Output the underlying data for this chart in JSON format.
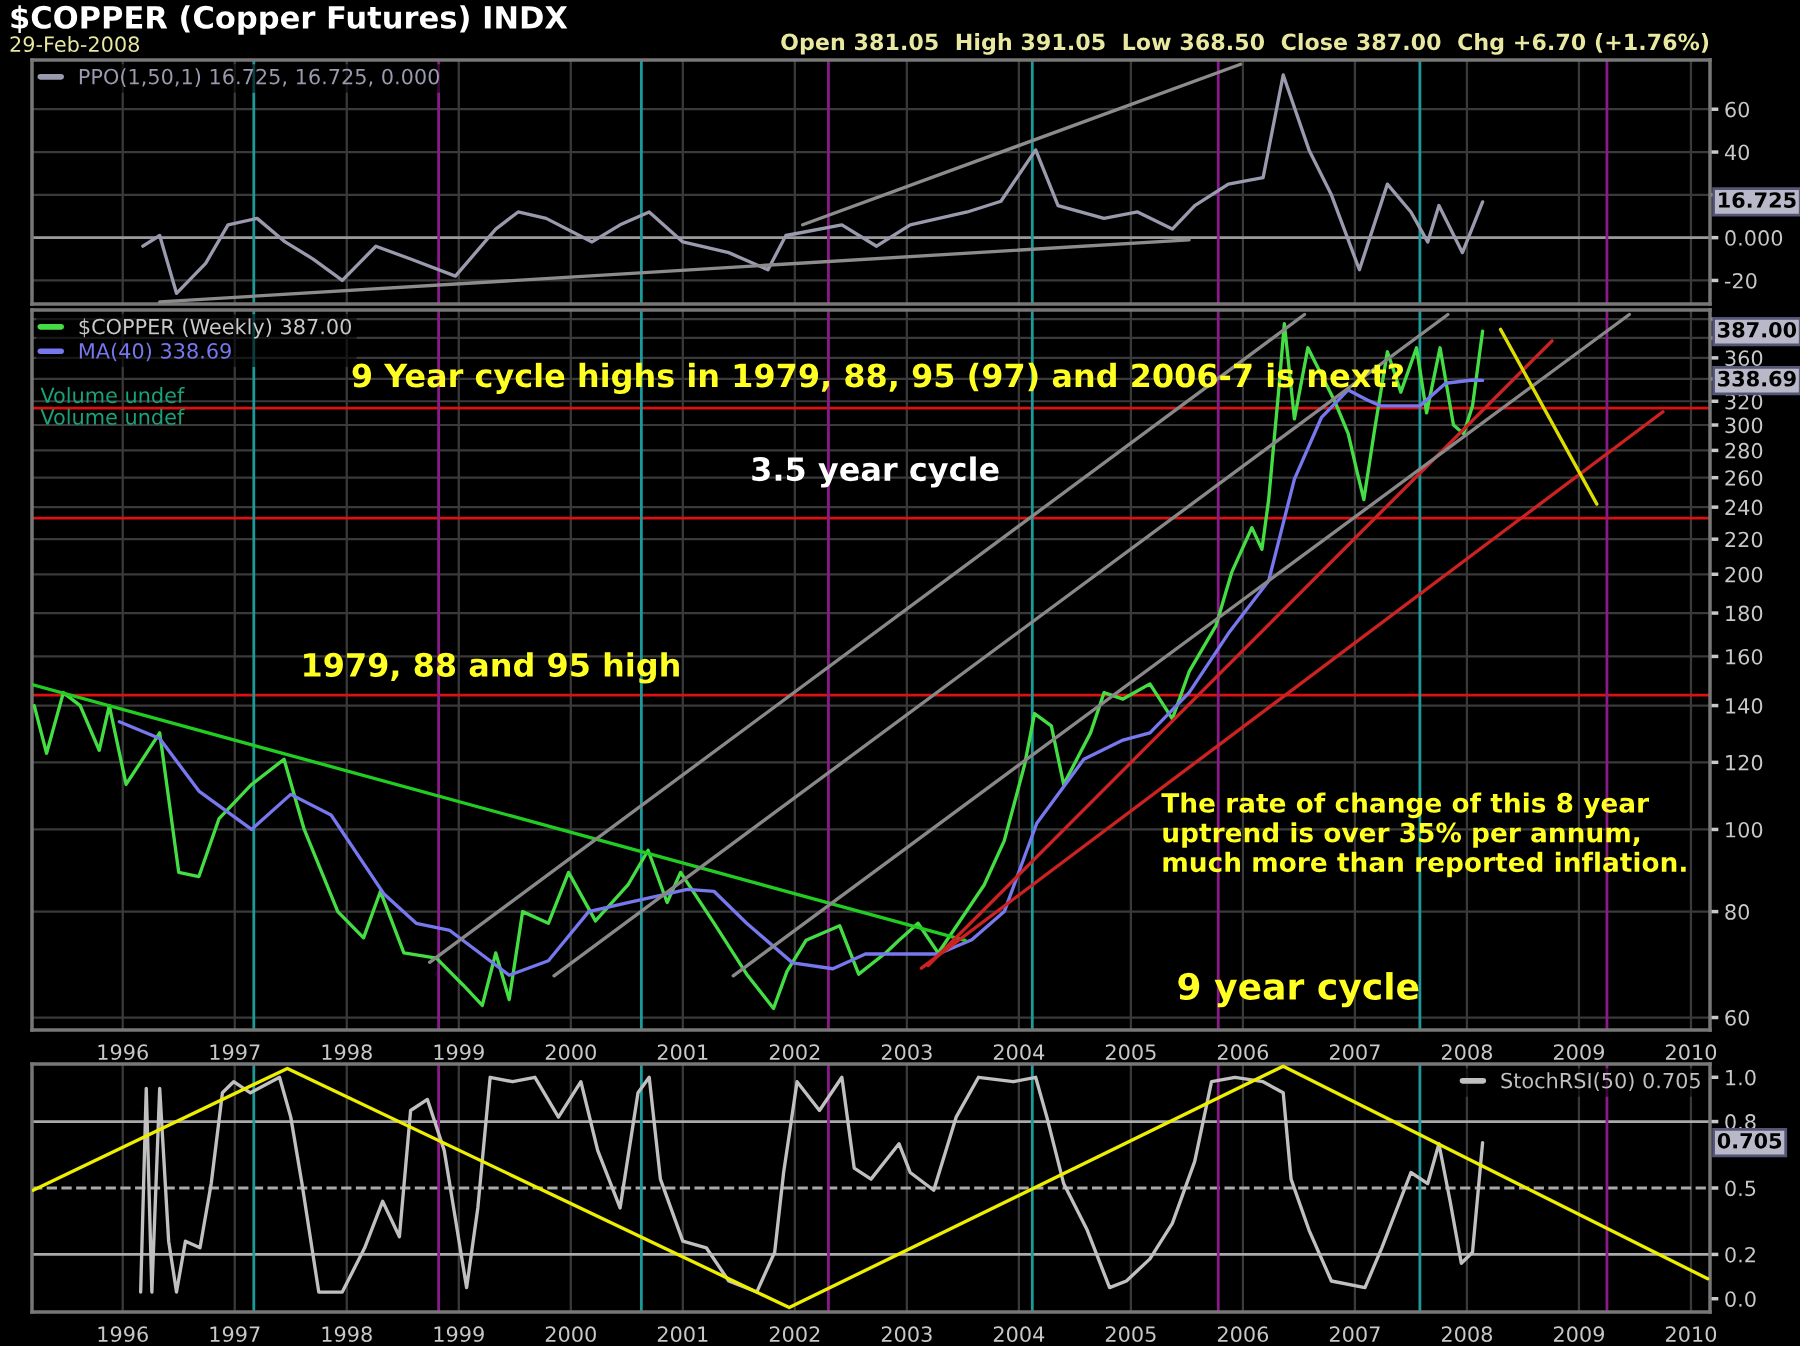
{
  "chart_data": [
    {
      "type": "line",
      "title": "$COPPER (Copper Futures) INDX",
      "subtitle": "29-Feb-2008",
      "annotations": [
        "Open 381.05  High 391.05  Low 368.50  Close 387.00  Chg +6.70 (+1.76%)",
        "16.725"
      ],
      "xlim": [
        1995.19,
        2010.17
      ],
      "xticks": [
        1996,
        1997,
        1998,
        1999,
        2000,
        2001,
        2002,
        2003,
        2004,
        2005,
        2006,
        2007,
        2008,
        2009,
        2010
      ],
      "ylim": [
        -31,
        83
      ],
      "yticks": [
        -20,
        {
          "value": 0,
          "label": "0.000"
        },
        {
          "value": 20,
          "label": null
        },
        40,
        60
      ],
      "tick_labels": "y",
      "grid": true,
      "legend": "top left",
      "ref_lines": [
        {
          "axis": "y",
          "value": 0,
          "color": "#9a9a9a"
        },
        {
          "axis": "x",
          "value": 1997.17,
          "color": "#1a9a9a"
        },
        {
          "axis": "x",
          "value": 2000.63,
          "color": "#1a9a9a"
        },
        {
          "axis": "x",
          "value": 2004.12,
          "color": "#1a9a9a"
        },
        {
          "axis": "x",
          "value": 2007.58,
          "color": "#1a9a9a"
        },
        {
          "axis": "x",
          "value": 1998.82,
          "color": "#8a1a8a"
        },
        {
          "axis": "x",
          "value": 2002.3,
          "color": "#8a1a8a"
        },
        {
          "axis": "x",
          "value": 2005.78,
          "color": "#8a1a8a"
        },
        {
          "axis": "x",
          "value": 2009.25,
          "color": "#8a1a8a"
        }
      ],
      "series": [
        {
          "name": "PPO(1,50,1) 16.725, 16.725, 0.000",
          "color": "#9a9aae",
          "x": [
            1996.18,
            1996.33,
            1996.48,
            1996.74,
            1996.94,
            1997.2,
            1997.45,
            1997.7,
            1997.96,
            1998.26,
            1998.57,
            1998.97,
            1999.33,
            1999.53,
            1999.78,
            2000.19,
            2000.44,
            2000.7,
            2001.0,
            2001.41,
            2001.76,
            2001.92,
            2002.42,
            2002.73,
            2003.03,
            2003.54,
            2003.84,
            2004.15,
            2004.35,
            2004.76,
            2005.06,
            2005.37,
            2005.57,
            2005.87,
            2006.18,
            2006.36,
            2006.59,
            2006.79,
            2007.04,
            2007.29,
            2007.5,
            2007.65,
            2007.75,
            2007.96,
            2008.14
          ],
          "values": [
            -4,
            1,
            -26,
            -12,
            6,
            9,
            -2,
            -10,
            -20,
            -4,
            -10,
            -18,
            4,
            12,
            9,
            -2,
            6,
            12,
            -2,
            -7,
            -15,
            1,
            6,
            -4,
            6,
            12,
            17,
            41,
            15,
            9,
            12,
            4,
            15,
            25,
            28,
            76,
            41,
            20,
            -15,
            25,
            12,
            -2,
            15,
            -7,
            16.725
          ]
        },
        {
          "color": "#8c8c8c",
          "x": [
            2002.07,
            2005.98
          ],
          "values": [
            6,
            81
          ]
        },
        {
          "color": "#8c8c8c",
          "x": [
            1996.33,
            2005.52
          ],
          "values": [
            -30,
            -1
          ]
        }
      ]
    },
    {
      "type": "line",
      "log": "y",
      "annotations": [
        "Volume undef",
        "Volume undef",
        "9 Year cycle highs in 1979, 88, 95 (97) and 2006-7 is next?",
        "3.5 year cycle",
        "1979, 88 and 95 high",
        "The rate of change of this 8 year\nuptrend is over 35% per annum,\nmuch more than reported inflation.",
        "9 year cycle",
        "387.00",
        "338.69"
      ],
      "xlim": [
        1995.19,
        2010.17
      ],
      "xticks": [
        1996,
        1997,
        1998,
        1999,
        2000,
        2001,
        2002,
        2003,
        2004,
        2005,
        2006,
        2007,
        2008,
        2009,
        2010
      ],
      "ylim": [
        58,
        410
      ],
      "yticks": [
        60,
        80,
        100,
        120,
        140,
        160,
        180,
        200,
        220,
        240,
        260,
        280,
        300,
        320,
        {
          "value": 340,
          "label": null
        },
        360,
        {
          "value": 380,
          "label": null
        },
        {
          "value": 400,
          "label": null
        }
      ],
      "grid": true,
      "legend": "top left",
      "ref_lines": [
        {
          "axis": "y",
          "value": 314,
          "color": "#dd1111"
        },
        {
          "axis": "y",
          "value": 233,
          "color": "#dd1111"
        },
        {
          "axis": "y",
          "value": 144,
          "color": "#dd1111"
        },
        {
          "axis": "x",
          "value": 1997.17,
          "color": "#1a9a9a"
        },
        {
          "axis": "x",
          "value": 2000.63,
          "color": "#1a9a9a"
        },
        {
          "axis": "x",
          "value": 2004.12,
          "color": "#1a9a9a"
        },
        {
          "axis": "x",
          "value": 2007.58,
          "color": "#1a9a9a"
        },
        {
          "axis": "x",
          "value": 1998.82,
          "color": "#8a1a8a"
        },
        {
          "axis": "x",
          "value": 2002.3,
          "color": "#8a1a8a"
        },
        {
          "axis": "x",
          "value": 2005.78,
          "color": "#8a1a8a"
        },
        {
          "axis": "x",
          "value": 2009.25,
          "color": "#8a1a8a"
        }
      ],
      "series": [
        {
          "name": "$COPPER (Weekly) 387.00",
          "color": "#44dd44",
          "x": [
            1995.21,
            1995.32,
            1995.47,
            1995.62,
            1995.79,
            1995.88,
            1996.03,
            1996.33,
            1996.5,
            1996.68,
            1996.86,
            1997.15,
            1997.44,
            1997.62,
            1997.92,
            1998.15,
            1998.3,
            1998.51,
            1998.8,
            1999.04,
            1999.21,
            1999.33,
            1999.45,
            1999.57,
            1999.8,
            1999.98,
            2000.22,
            2000.51,
            2000.69,
            2000.86,
            2000.98,
            2001.28,
            2001.57,
            2001.81,
            2001.93,
            2002.1,
            2002.4,
            2002.57,
            2002.81,
            2002.93,
            2003.1,
            2003.28,
            2003.46,
            2003.69,
            2003.87,
            2004.05,
            2004.14,
            2004.29,
            2004.4,
            2004.64,
            2004.76,
            2004.93,
            2005.17,
            2005.37,
            2005.52,
            2005.76,
            2005.9,
            2006.08,
            2006.17,
            2006.23,
            2006.32,
            2006.37,
            2006.46,
            2006.58,
            2006.82,
            2006.94,
            2007.02,
            2007.08,
            2007.17,
            2007.29,
            2007.41,
            2007.55,
            2007.64,
            2007.76,
            2007.88,
            2007.97,
            2008.05,
            2008.14
          ],
          "values": [
            140,
            123,
            145,
            140,
            124,
            140,
            113,
            130,
            89,
            88,
            103,
            113,
            121,
            100,
            80,
            74.5,
            84.5,
            71.5,
            70.5,
            65.5,
            62,
            71.5,
            63,
            80,
            77.5,
            89,
            78,
            86,
            94.5,
            82,
            89,
            77.5,
            67.5,
            61.5,
            68,
            74,
            77,
            67.5,
            71.5,
            74,
            77.5,
            71.5,
            77.5,
            86,
            97,
            119,
            137,
            132.5,
            113,
            130,
            145,
            142.5,
            148.5,
            135,
            153.5,
            174,
            201,
            227,
            214,
            245,
            330,
            395,
            305,
            370,
            320,
            293,
            264,
            245,
            293,
            366,
            328,
            370,
            310,
            370,
            300,
            293,
            316,
            387
          ]
        },
        {
          "name": "MA(40) 338.69",
          "color": "#7777ee",
          "x": [
            1995.97,
            1996.33,
            1996.68,
            1997.15,
            1997.5,
            1997.86,
            1998.33,
            1998.62,
            1998.92,
            1999.45,
            1999.8,
            2000.16,
            2000.51,
            2001.04,
            2001.28,
            2001.57,
            2001.98,
            2002.34,
            2002.63,
            2003.28,
            2003.58,
            2003.87,
            2004.16,
            2004.58,
            2004.93,
            2005.17,
            2005.52,
            2005.88,
            2006.23,
            2006.46,
            2006.7,
            2006.94,
            2007.11,
            2007.23,
            2007.58,
            2007.81,
            2008.05,
            2008.14
          ],
          "values": [
            134,
            128,
            111,
            100,
            110,
            104,
            84,
            77.5,
            76,
            67.3,
            70,
            80,
            82,
            85,
            84.5,
            77.5,
            69.6,
            68.5,
            71.3,
            71.3,
            74.1,
            80,
            101.7,
            121,
            127.5,
            130,
            145,
            171,
            196.5,
            259,
            306,
            330,
            321,
            316,
            316,
            336,
            339,
            338.69
          ]
        },
        {
          "color": "#22cc22",
          "x": [
            1995.19,
            2003.52
          ],
          "values": [
            148.2,
            74.0
          ]
        },
        {
          "color": "#cc2222",
          "x": [
            2003.19,
            2008.76
          ],
          "values": [
            69.1,
            377
          ]
        },
        {
          "color": "#cc2222",
          "x": [
            2003.13,
            2009.75
          ],
          "values": [
            68.6,
            311
          ]
        },
        {
          "color": "#888888",
          "x": [
            1998.74,
            2006.55
          ],
          "values": [
            69.7,
            405
          ]
        },
        {
          "color": "#888888",
          "x": [
            1999.85,
            2007.83
          ],
          "values": [
            67.2,
            405
          ]
        },
        {
          "color": "#888888",
          "x": [
            2001.45,
            2009.45
          ],
          "values": [
            67.2,
            405
          ]
        },
        {
          "color": "#dddd00",
          "x": [
            2008.3,
            2009.16
          ],
          "values": [
            389,
            242
          ]
        }
      ]
    },
    {
      "type": "line",
      "annotations": [
        "0.705"
      ],
      "xlim": [
        1995.19,
        2010.17
      ],
      "xticks": [
        1996,
        1997,
        1998,
        1999,
        2000,
        2001,
        2002,
        2003,
        2004,
        2005,
        2006,
        2007,
        2008,
        2009,
        2010
      ],
      "ylim": [
        -0.06,
        1.06
      ],
      "yticks": [
        {
          "value": 0,
          "label": "0.0"
        },
        0.2,
        0.5,
        0.8,
        {
          "value": 1,
          "label": "1.0"
        }
      ],
      "grid": "x",
      "legend": "top right",
      "ref_lines": [
        {
          "axis": "y",
          "value": 0.2,
          "color": "#aaaaaa"
        },
        {
          "axis": "y",
          "value": 0.8,
          "color": "#aaaaaa"
        },
        {
          "axis": "y",
          "value": 0.5,
          "color": "#aaaaaa",
          "line_style": "dashed"
        },
        {
          "axis": "x",
          "value": 1997.17,
          "color": "#1a9a9a"
        },
        {
          "axis": "x",
          "value": 2000.63,
          "color": "#1a9a9a"
        },
        {
          "axis": "x",
          "value": 2004.12,
          "color": "#1a9a9a"
        },
        {
          "axis": "x",
          "value": 2007.58,
          "color": "#1a9a9a"
        },
        {
          "axis": "x",
          "value": 1998.82,
          "color": "#8a1a8a"
        },
        {
          "axis": "x",
          "value": 2002.3,
          "color": "#8a1a8a"
        },
        {
          "axis": "x",
          "value": 2005.78,
          "color": "#8a1a8a"
        },
        {
          "axis": "x",
          "value": 2009.25,
          "color": "#8a1a8a"
        }
      ],
      "series": [
        {
          "name": "StochRSI(50) 0.705",
          "color": "#c0c0c0",
          "x": [
            1996.16,
            1996.21,
            1996.26,
            1996.33,
            1996.41,
            1996.48,
            1996.56,
            1996.69,
            1996.79,
            1996.89,
            1996.99,
            1997.14,
            1997.4,
            1997.5,
            1997.6,
            1997.75,
            1997.96,
            1998.16,
            1998.32,
            1998.47,
            1998.57,
            1998.72,
            1998.87,
            1998.97,
            1999.07,
            1999.17,
            1999.28,
            1999.48,
            1999.68,
            1999.89,
            2000.09,
            2000.24,
            2000.44,
            2000.6,
            2000.7,
            2000.8,
            2001.0,
            2001.21,
            2001.41,
            2001.66,
            2001.82,
            2001.9,
            2002.02,
            2002.22,
            2002.42,
            2002.53,
            2002.68,
            2002.93,
            2003.03,
            2003.24,
            2003.44,
            2003.64,
            2003.95,
            2004.15,
            2004.25,
            2004.4,
            2004.61,
            2004.81,
            2004.96,
            2005.17,
            2005.37,
            2005.57,
            2005.72,
            2005.93,
            2006.18,
            2006.36,
            2006.43,
            2006.59,
            2006.79,
            2007.09,
            2007.24,
            2007.5,
            2007.65,
            2007.75,
            2007.85,
            2007.95,
            2008.05,
            2008.14
          ],
          "values": [
            0.03,
            0.95,
            0.03,
            0.95,
            0.26,
            0.03,
            0.26,
            0.23,
            0.52,
            0.93,
            0.98,
            0.93,
            1.0,
            0.82,
            0.52,
            0.03,
            0.03,
            0.23,
            0.44,
            0.28,
            0.85,
            0.9,
            0.67,
            0.36,
            0.05,
            0.41,
            1.0,
            0.98,
            1.0,
            0.82,
            0.98,
            0.67,
            0.41,
            0.93,
            1.0,
            0.54,
            0.26,
            0.23,
            0.08,
            0.03,
            0.21,
            0.57,
            0.98,
            0.85,
            1.0,
            0.59,
            0.54,
            0.7,
            0.57,
            0.49,
            0.82,
            1.0,
            0.98,
            1.0,
            0.82,
            0.52,
            0.31,
            0.05,
            0.08,
            0.18,
            0.34,
            0.62,
            0.98,
            1.0,
            0.98,
            0.93,
            0.54,
            0.31,
            0.08,
            0.05,
            0.23,
            0.57,
            0.52,
            0.7,
            0.44,
            0.16,
            0.21,
            0.705
          ]
        },
        {
          "color": "#eeee00",
          "x": [
            1995.2,
            1997.47,
            2001.95,
            2006.36,
            2010.15
          ],
          "values": [
            0.49,
            1.04,
            -0.04,
            1.05,
            0.09
          ]
        }
      ]
    }
  ]
}
